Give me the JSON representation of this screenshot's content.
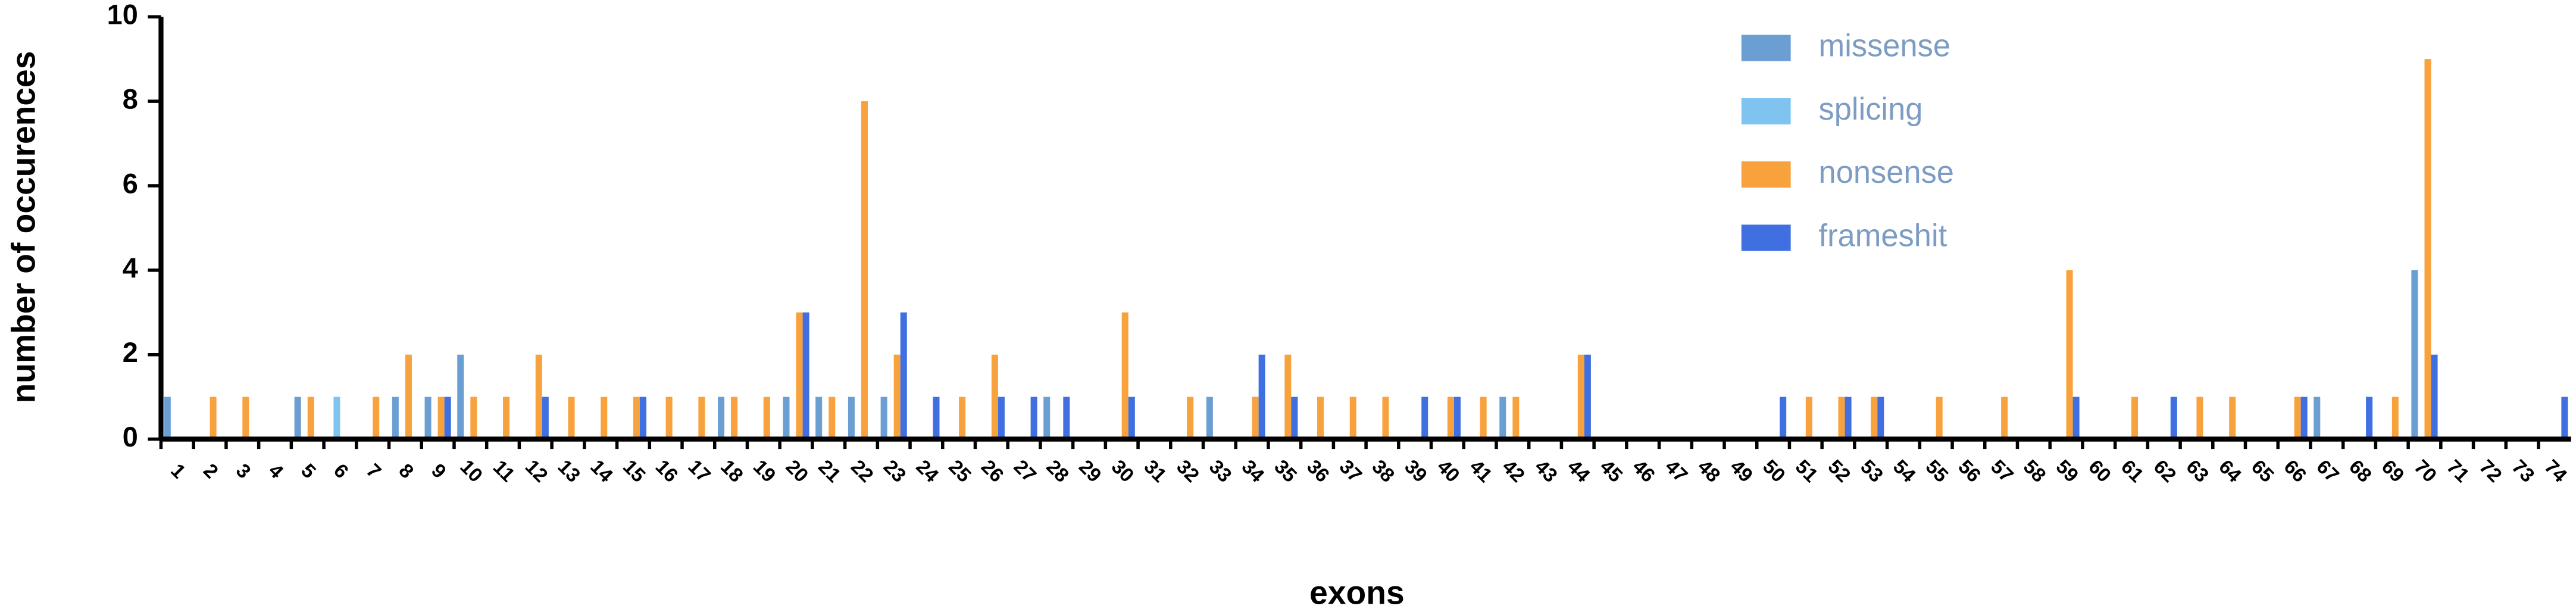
{
  "chart_data": {
    "type": "bar",
    "x_label": "exons",
    "y_label": "number of occurences",
    "categories": [
      "1",
      "2",
      "3",
      "4",
      "5",
      "6",
      "7",
      "8",
      "9",
      "10",
      "11",
      "12",
      "13",
      "14",
      "15",
      "16",
      "17",
      "18",
      "19",
      "20",
      "21",
      "22",
      "23",
      "24",
      "25",
      "26",
      "27",
      "28",
      "29",
      "30",
      "31",
      "32",
      "33",
      "34",
      "35",
      "36",
      "37",
      "38",
      "39",
      "40",
      "41",
      "42",
      "43",
      "44",
      "45",
      "46",
      "47",
      "48",
      "49",
      "50",
      "51",
      "52",
      "53",
      "54",
      "55",
      "56",
      "57",
      "58",
      "59",
      "60",
      "61",
      "62",
      "63",
      "64",
      "65",
      "66",
      "67",
      "68",
      "69",
      "70",
      "71",
      "72",
      "73",
      "74"
    ],
    "series": [
      {
        "name": "missense",
        "color": "#6b9ed3",
        "values": [
          1,
          0,
          0,
          0,
          1,
          0,
          0,
          1,
          1,
          2,
          0,
          0,
          0,
          0,
          0,
          0,
          0,
          1,
          0,
          1,
          1,
          1,
          1,
          0,
          0,
          0,
          0,
          1,
          0,
          0,
          0,
          0,
          1,
          0,
          0,
          0,
          0,
          0,
          0,
          0,
          0,
          1,
          0,
          0,
          0,
          0,
          0,
          0,
          0,
          0,
          0,
          0,
          0,
          0,
          0,
          0,
          0,
          0,
          0,
          0,
          0,
          0,
          0,
          0,
          0,
          0,
          1,
          0,
          0,
          4,
          0,
          0,
          0,
          0
        ]
      },
      {
        "name": "splicing",
        "color": "#7fc3f0",
        "values": [
          0,
          0,
          0,
          0,
          0,
          1,
          0,
          0,
          0,
          0,
          0,
          0,
          0,
          0,
          0,
          0,
          0,
          0,
          0,
          0,
          0,
          0,
          0,
          0,
          0,
          0,
          0,
          0,
          0,
          0,
          0,
          0,
          0,
          0,
          0,
          0,
          0,
          0,
          0,
          0,
          0,
          0,
          0,
          0,
          0,
          0,
          0,
          0,
          0,
          0,
          0,
          0,
          0,
          0,
          0,
          0,
          0,
          0,
          0,
          0,
          0,
          0,
          0,
          0,
          0,
          0,
          0,
          0,
          0,
          0,
          0,
          0,
          0,
          0
        ]
      },
      {
        "name": "nonsense",
        "color": "#f8a23d",
        "values": [
          0,
          1,
          1,
          0,
          1,
          0,
          1,
          2,
          1,
          1,
          1,
          2,
          1,
          1,
          1,
          1,
          1,
          1,
          1,
          3,
          1,
          8,
          2,
          0,
          1,
          2,
          0,
          0,
          0,
          3,
          0,
          1,
          0,
          1,
          2,
          1,
          1,
          1,
          0,
          1,
          1,
          1,
          0,
          2,
          0,
          0,
          0,
          0,
          0,
          0,
          1,
          1,
          1,
          0,
          1,
          0,
          1,
          0,
          4,
          0,
          1,
          0,
          1,
          1,
          0,
          1,
          0,
          0,
          1,
          9,
          0,
          0,
          0,
          0
        ]
      },
      {
        "name": "frameshit",
        "color": "#3f6fe0",
        "values": [
          0,
          0,
          0,
          0,
          0,
          0,
          0,
          0,
          1,
          0,
          0,
          1,
          0,
          0,
          1,
          0,
          0,
          0,
          0,
          3,
          0,
          0,
          3,
          1,
          0,
          1,
          1,
          1,
          0,
          1,
          0,
          0,
          0,
          2,
          1,
          0,
          0,
          0,
          1,
          1,
          0,
          0,
          0,
          2,
          0,
          0,
          0,
          0,
          0,
          1,
          0,
          1,
          1,
          0,
          0,
          0,
          0,
          0,
          1,
          0,
          0,
          1,
          0,
          0,
          0,
          1,
          0,
          1,
          0,
          2,
          0,
          0,
          0,
          1
        ]
      }
    ],
    "ylim": [
      0,
      10
    ],
    "yticks": [
      0,
      2,
      4,
      6,
      8,
      10
    ],
    "legend": "top-right"
  }
}
